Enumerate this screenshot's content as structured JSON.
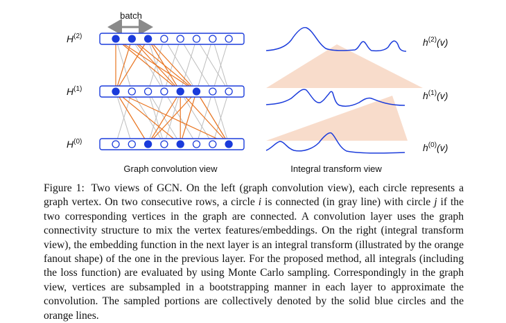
{
  "figure": {
    "batch_label": "batch",
    "layer_labels": [
      {
        "base": "H",
        "sup": "(2)"
      },
      {
        "base": "H",
        "sup": "(1)"
      },
      {
        "base": "H",
        "sup": "(0)"
      }
    ],
    "function_labels": [
      {
        "base": "h",
        "sup": "(2)",
        "arg": "(v)"
      },
      {
        "base": "h",
        "sup": "(1)",
        "arg": "(v)"
      },
      {
        "base": "h",
        "sup": "(0)",
        "arg": "(v)"
      }
    ],
    "left_view_title": "Graph convolution view",
    "right_view_title": "Integral transform view",
    "colors": {
      "blue": "#1a3bdb",
      "orange": "#e9741f",
      "gray": "#bdbdbd",
      "fan": "#f8dccb"
    },
    "nodes_per_layer": 8,
    "sampled_nodes": {
      "layer2": [
        0,
        1,
        2
      ],
      "layer1": [
        0,
        4,
        5
      ],
      "layer0": [
        2,
        4,
        7
      ]
    }
  },
  "caption": {
    "label": "Figure 1:",
    "part1": "Two views of GCN. On the left (graph convolution view), each circle represents a graph vertex. On two consecutive rows, a circle",
    "var_i": "i",
    "part2": "is connected (in gray line) with circle",
    "var_j": "j",
    "part3": "if the two corresponding vertices in the graph are connected. A convolution layer uses the graph connectivity structure to mix the vertex features/embeddings. On the right (integral transform view), the embedding function in the next layer is an integral transform (illustrated by the orange fanout shape) of the one in the previous layer. For the proposed method, all integrals (including the loss function) are evaluated by using Monte Carlo sampling. Correspondingly in the graph view, vertices are subsampled in a bootstrapping manner in each layer to approximate the convolution. The sampled portions are collectively denoted by the solid blue circles and the orange lines."
  }
}
